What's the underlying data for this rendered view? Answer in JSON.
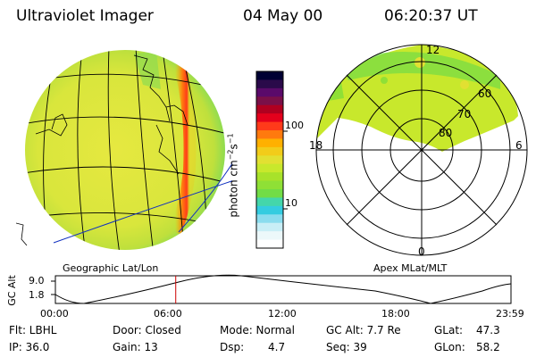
{
  "header": {
    "instrument": "Ultraviolet Imager",
    "date": "04 May 00",
    "time": "06:20:37 UT"
  },
  "colorbar": {
    "unit_label": "photon cm",
    "unit_sup1": "−2",
    "unit_s": "s",
    "unit_sup2": "−1",
    "ticks": [
      {
        "label": "100",
        "value": 100
      },
      {
        "label": "10",
        "value": 10
      }
    ],
    "colors": [
      "#000033",
      "#2a0a4a",
      "#5a0a6a",
      "#7a1048",
      "#b00020",
      "#e4001c",
      "#ff3a1a",
      "#ff7a0e",
      "#ffb000",
      "#f2cc1a",
      "#e2e032",
      "#c8e82c",
      "#a8e22a",
      "#8fe036",
      "#72dc46",
      "#44d6aa",
      "#34cce0",
      "#8adcee",
      "#c8eef6",
      "#ecf8fa",
      "#ffffff"
    ]
  },
  "left_panel": {
    "projection_label": "Geographic Lat/Lon"
  },
  "right_panel": {
    "coord_label": "Apex MLat/MLT",
    "mlt_labels": {
      "top": "12",
      "left": "18",
      "right": "6",
      "bottom": "0"
    },
    "mlat_labels": [
      "60",
      "70",
      "80"
    ]
  },
  "timeline": {
    "y_axis_label": "GC Alt",
    "y_ticks": [
      "9.0",
      "1.8"
    ],
    "x_ticks": [
      "00:00",
      "06:00",
      "12:00",
      "18:00",
      "23:59"
    ],
    "current_time_hours": 6.34,
    "current_time_color": "#cc0000"
  },
  "info": {
    "flt": "Flt: LBHL",
    "ip": "IP: 36.0",
    "door": "Door: Closed",
    "gain": "Gain: 13",
    "mode": "Mode: Normal",
    "dsp_label": "Dsp:",
    "dsp_value": "4.7",
    "gc_alt": "GC Alt: 7.7 Re",
    "seq": "Seq: 39",
    "glat_label": "GLat:",
    "glat_value": "47.3",
    "glon_label": "GLon:",
    "glon_value": "58.2"
  }
}
